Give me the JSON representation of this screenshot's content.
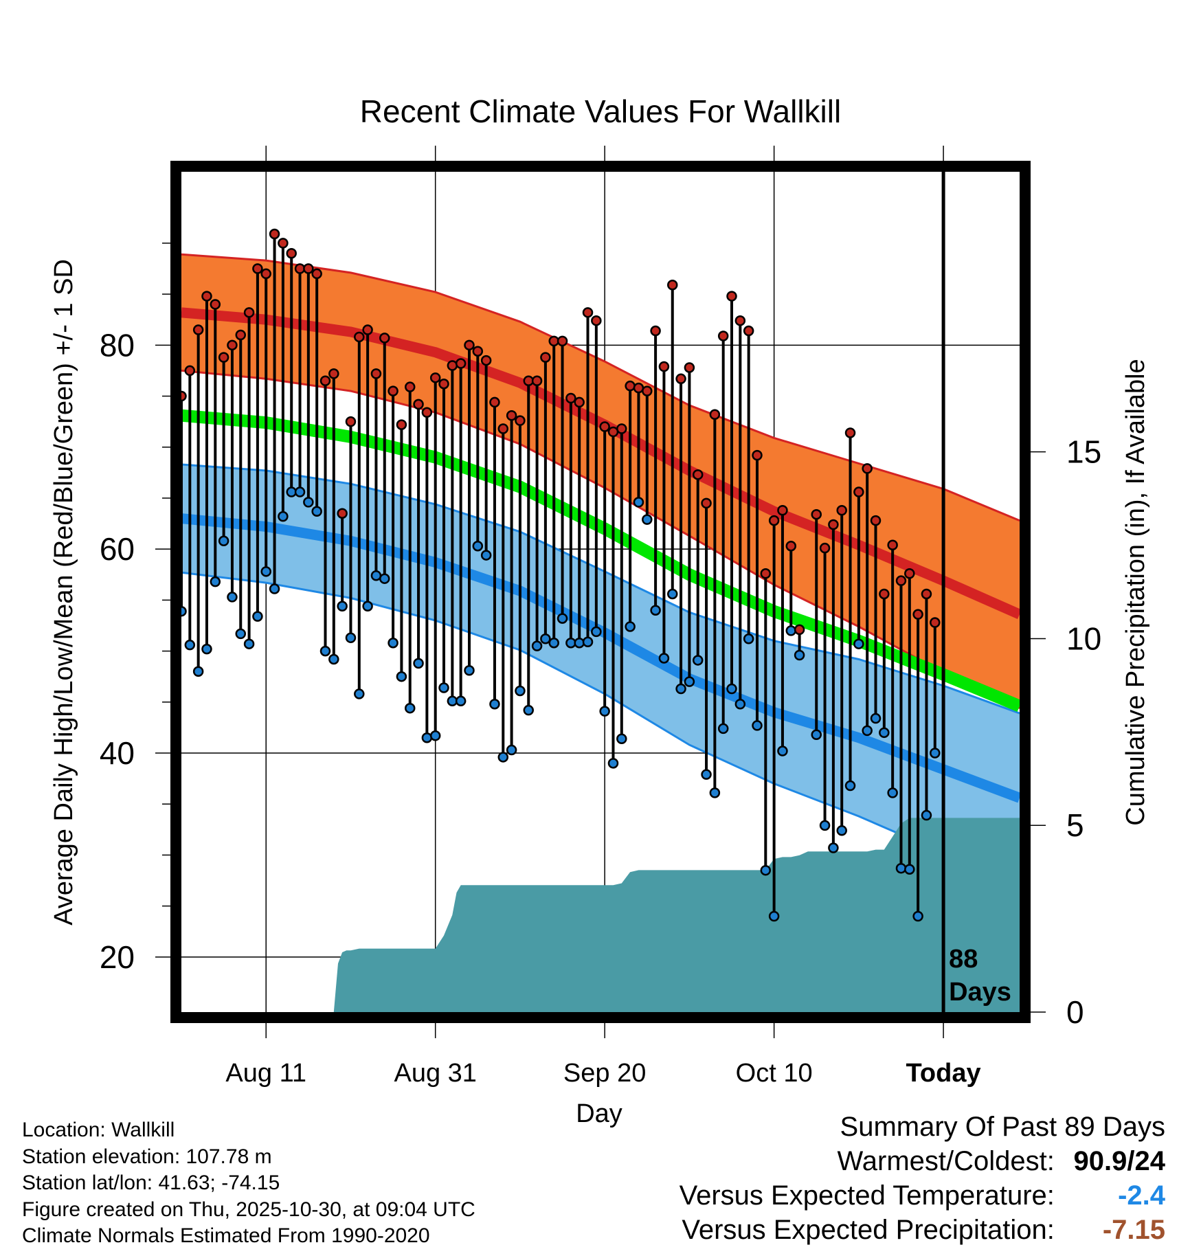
{
  "chart_data": {
    "type": "line",
    "title": "Recent Climate Values For Wallkill",
    "xlabel": "Day",
    "ylabel": "Average Daily High/Low/Mean (Red/Blue/Green) +/- 1 SD",
    "y2label": "Cumulative Precipitation (in), If Available",
    "xlim": [
      0,
      99
    ],
    "ylim": [
      14.6,
      97
    ],
    "y2lim": [
      0,
      22.5
    ],
    "x_ticks": [
      {
        "x": 10,
        "label": "Aug 11"
      },
      {
        "x": 30,
        "label": "Aug 31"
      },
      {
        "x": 50,
        "label": "Sep 20"
      },
      {
        "x": 70,
        "label": "Oct 10"
      },
      {
        "x": 90,
        "label": "Today"
      }
    ],
    "y_ticks": [
      20,
      40,
      60,
      80
    ],
    "y2_ticks": [
      0,
      5,
      10,
      15
    ],
    "today_x": 90,
    "today_annotation": [
      "88",
      "Days"
    ],
    "normals": {
      "x": [
        0,
        10,
        20,
        30,
        40,
        50,
        60,
        70,
        80,
        90,
        99
      ],
      "high_mean": [
        83.2,
        82.5,
        81.3,
        79.3,
        76.3,
        72.2,
        67.7,
        63.7,
        60.4,
        56.9,
        53.6
      ],
      "high_sd": [
        5.7,
        5.8,
        5.8,
        5.9,
        6.0,
        6.2,
        6.4,
        7.2,
        8.0,
        9.0,
        9.2
      ],
      "low_mean": [
        63.0,
        62.2,
        60.8,
        58.7,
        55.9,
        51.8,
        47.3,
        44.0,
        41.5,
        38.4,
        35.6
      ],
      "low_sd": [
        5.3,
        5.5,
        5.6,
        5.7,
        5.8,
        6.0,
        6.5,
        7.0,
        7.7,
        8.2,
        8.3
      ],
      "mean": [
        73.1,
        72.4,
        71.0,
        69.0,
        66.1,
        62.0,
        57.5,
        53.9,
        51.0,
        47.7,
        44.6
      ],
      "colors": {
        "high_band": "#F47A30",
        "high_line": "#D42323",
        "low_band": "#7FBFE8",
        "low_line": "#1E88E5",
        "mean_line": "#00E600",
        "precip": "#4A9BA5",
        "high_dot": "#C0281E",
        "low_dot": "#1F7FD0"
      }
    },
    "series": [
      {
        "name": "Daily High",
        "x": [
          0,
          1,
          2,
          3,
          4,
          5,
          6,
          7,
          8,
          9,
          10,
          11,
          12,
          13,
          14,
          15,
          16,
          17,
          18,
          19,
          20,
          21,
          22,
          23,
          24,
          25,
          26,
          27,
          28,
          29,
          30,
          31,
          32,
          33,
          34,
          35,
          36,
          37,
          38,
          39,
          40,
          41,
          42,
          43,
          44,
          45,
          46,
          47,
          48,
          49,
          50,
          51,
          52,
          53,
          54,
          55,
          56,
          57,
          58,
          59,
          60,
          61,
          62,
          63,
          64,
          65,
          66,
          67,
          68,
          69,
          70,
          71,
          72,
          73,
          74,
          75,
          76,
          77,
          78,
          79,
          80,
          81,
          82,
          83,
          84,
          85,
          86,
          87,
          88,
          89
        ],
        "values": [
          75,
          77.5,
          81.5,
          84.8,
          84,
          78.8,
          80,
          81,
          83.2,
          87.5,
          87,
          90.9,
          90,
          89,
          87.5,
          87.5,
          87,
          76.5,
          77.2,
          63.5,
          72.5,
          80.8,
          81.5,
          77.2,
          80.7,
          75.5,
          72.2,
          75.9,
          74.2,
          73.4,
          76.8,
          76.2,
          78,
          78.2,
          80,
          79.4,
          78.5,
          74.4,
          71.8,
          73.1,
          72.6,
          76.5,
          76.5,
          78.8,
          80.4,
          80.4,
          74.8,
          74.4,
          83.2,
          82.4,
          72,
          71.5,
          71.8,
          76,
          75.8,
          75.5,
          81.4,
          77.9,
          85.9,
          76.7,
          77.8,
          67.3,
          64.5,
          73.2,
          80.9,
          84.8,
          82.4,
          81.4,
          69.2,
          57.6,
          62.8,
          63.8,
          60.3,
          52.1,
          null,
          63.4,
          60.1,
          62.4,
          63.8,
          71.4,
          65.6,
          67.9,
          62.8,
          55.6,
          60.4,
          56.9,
          57.6,
          53.6,
          55.6,
          52.8
        ]
      },
      {
        "name": "Daily Low",
        "x": [
          0,
          1,
          2,
          3,
          4,
          5,
          6,
          7,
          8,
          9,
          10,
          11,
          12,
          13,
          14,
          15,
          16,
          17,
          18,
          19,
          20,
          21,
          22,
          23,
          24,
          25,
          26,
          27,
          28,
          29,
          30,
          31,
          32,
          33,
          34,
          35,
          36,
          37,
          38,
          39,
          40,
          41,
          42,
          43,
          44,
          45,
          46,
          47,
          48,
          49,
          50,
          51,
          52,
          53,
          54,
          55,
          56,
          57,
          58,
          59,
          60,
          61,
          62,
          63,
          64,
          65,
          66,
          67,
          68,
          69,
          70,
          71,
          72,
          73,
          74,
          75,
          76,
          77,
          78,
          79,
          80,
          81,
          82,
          83,
          84,
          85,
          86,
          87,
          88,
          89
        ],
        "values": [
          53.9,
          50.6,
          48,
          50.2,
          56.8,
          60.8,
          55.3,
          51.7,
          50.7,
          53.4,
          57.8,
          56.1,
          63.2,
          65.6,
          65.6,
          64.6,
          63.7,
          50,
          49.2,
          54.4,
          51.3,
          45.8,
          54.4,
          57.4,
          57.1,
          50.8,
          47.5,
          44.4,
          48.8,
          41.5,
          41.7,
          46.4,
          45.1,
          45.1,
          48.1,
          60.3,
          59.4,
          44.8,
          39.6,
          40.3,
          46.1,
          44.2,
          50.5,
          51.2,
          50.8,
          53.2,
          50.8,
          50.8,
          50.9,
          51.9,
          44.1,
          39,
          41.4,
          52.4,
          64.6,
          62.9,
          54,
          49.3,
          55.6,
          46.3,
          47,
          49.1,
          37.9,
          36.1,
          42.4,
          46.3,
          44.8,
          51.2,
          42.7,
          28.5,
          24,
          40.2,
          52,
          49.6,
          null,
          41.8,
          32.9,
          30.7,
          32.4,
          36.8,
          50.7,
          42.2,
          43.4,
          42,
          36.1,
          28.7,
          28.6,
          24,
          33.9,
          40
        ]
      },
      {
        "name": "Cumulative Precipitation",
        "axis": "y2",
        "x": [
          0,
          18,
          18.5,
          19,
          19.5,
          20,
          21,
          30,
          31,
          32,
          32.5,
          33,
          34,
          35,
          36,
          37,
          38,
          39,
          40,
          41,
          42,
          43,
          44,
          45,
          46,
          47,
          48,
          49,
          50,
          51,
          52,
          53,
          54,
          55,
          56,
          57,
          58,
          59,
          60,
          61,
          62,
          63,
          64,
          65,
          66,
          67,
          68,
          69,
          70,
          71,
          72,
          73,
          74,
          75,
          76,
          77,
          78,
          79,
          80,
          81,
          82,
          83,
          84,
          85,
          86,
          87,
          88,
          89,
          90,
          99
        ],
        "values": [
          0,
          0,
          1.3,
          1.6,
          1.65,
          1.65,
          1.7,
          1.7,
          2.05,
          2.6,
          3.2,
          3.4,
          3.4,
          3.4,
          3.4,
          3.4,
          3.4,
          3.4,
          3.4,
          3.4,
          3.4,
          3.4,
          3.4,
          3.4,
          3.4,
          3.4,
          3.4,
          3.4,
          3.4,
          3.4,
          3.45,
          3.75,
          3.8,
          3.8,
          3.8,
          3.8,
          3.8,
          3.8,
          3.8,
          3.8,
          3.8,
          3.8,
          3.8,
          3.8,
          3.8,
          3.8,
          3.8,
          3.8,
          4.1,
          4.15,
          4.15,
          4.2,
          4.3,
          4.3,
          4.3,
          4.3,
          4.3,
          4.3,
          4.3,
          4.3,
          4.35,
          4.35,
          4.7,
          5.05,
          5.2,
          5.2,
          5.2,
          5.2,
          5.2,
          5.2
        ]
      }
    ]
  },
  "footer": {
    "location": "Location: Wallkill",
    "elevation": "Station elevation: 107.78 m",
    "latlon": "Station lat/lon: 41.63; -74.15",
    "created": "Figure created on Thu, 2025-10-30, at 09:04 UTC",
    "normals": "Climate Normals Estimated From 1990-2020"
  },
  "summary": {
    "title": "Summary Of Past 89 Days",
    "warmest_label": "Warmest/Coldest:",
    "warmest_value": "90.9/24",
    "temp_label": "Versus Expected Temperature:",
    "temp_value": "-2.4",
    "temp_color": "#1E88E5",
    "precip_label": "Versus Expected Precipitation:",
    "precip_value": "-7.15",
    "precip_color": "#A0522D"
  }
}
